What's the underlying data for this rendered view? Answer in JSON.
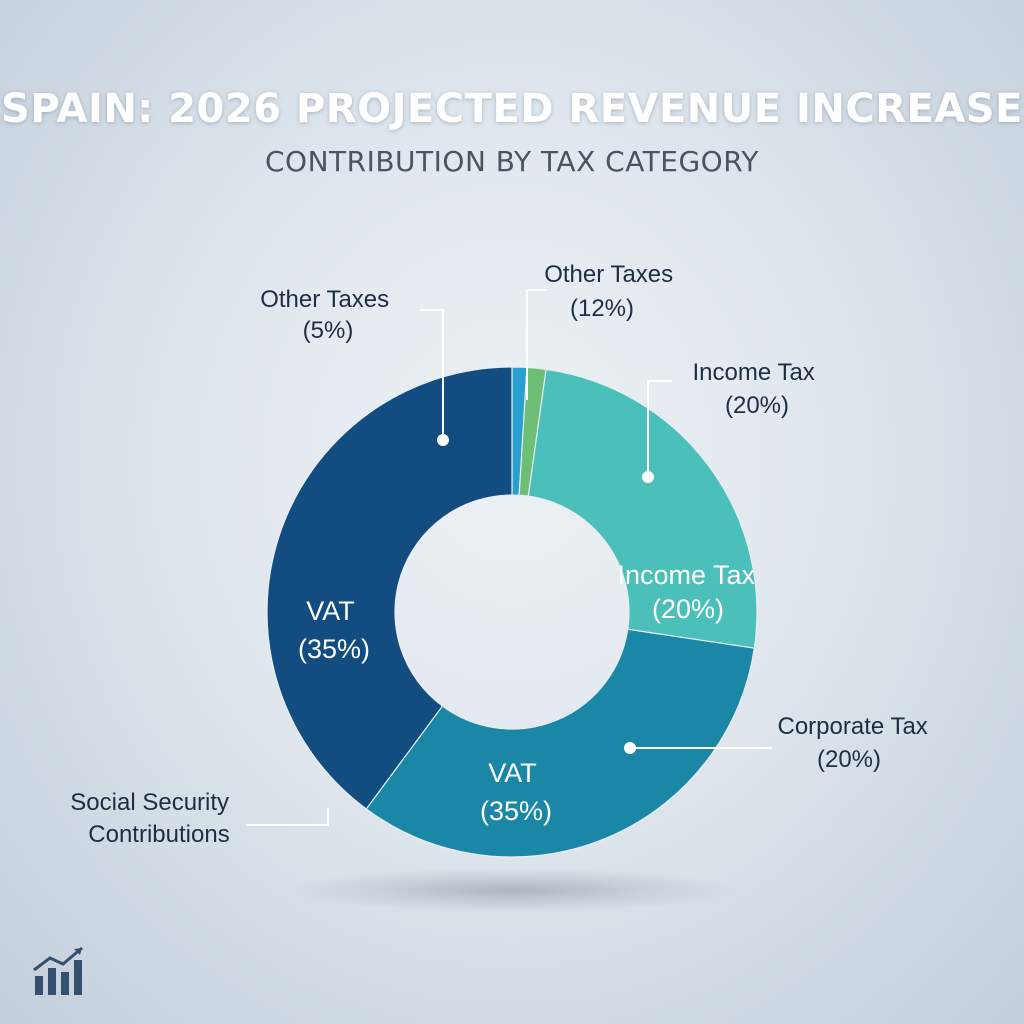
{
  "title": "SPAIN: 2026 PROJECTED REVENUE INCREASE",
  "subtitle": "CONTRIBUTION BY TAX CATEGORY",
  "logo_icon": "bar-chart-trend-icon",
  "chart_data": {
    "type": "pie",
    "variant": "donut",
    "title": "SPAIN: 2026 PROJECTED REVENUE INCREASE",
    "subtitle": "CONTRIBUTION BY TAX CATEGORY",
    "slices": [
      {
        "name": "Other Taxes",
        "value": 5,
        "percent_label": "(5%)",
        "color": "#27a0d0",
        "label_position": "top-left",
        "inside": false
      },
      {
        "name": "Other Taxes",
        "value": 12,
        "percent_label": "(12%)",
        "color": "#6cbf74",
        "label_position": "top",
        "inside": false
      },
      {
        "name": "Income Tax",
        "value": 20,
        "percent_label": "(20%)",
        "color": "#4bbfb9",
        "label_position": "top-right",
        "inside": true
      },
      {
        "name": "Corporate Tax",
        "value": 20,
        "percent_label": "(20%)",
        "color": "#1a87a6",
        "label_position": "right",
        "inside": false
      },
      {
        "name": "VAT",
        "value": 35,
        "percent_label": "(35%)",
        "color": "#124c80",
        "label_position": "left",
        "inside": true
      },
      {
        "name": "Social Security Contributions",
        "value": null,
        "percent_label": "",
        "color": "#124c80",
        "label_position": "bottom-left",
        "inside": false
      }
    ],
    "inside_labels": [
      {
        "name": "Income Tax",
        "percent": "(20%)"
      },
      {
        "name": "VAT",
        "percent": "(35%)"
      },
      {
        "name": "VAT",
        "percent": "(35%)"
      }
    ],
    "outside_labels": [
      {
        "line1": "Other Taxes",
        "line2": "(5%)"
      },
      {
        "line1": "Other Taxes",
        "line2": "(12%)"
      },
      {
        "line1": "Income Tax",
        "line2": "(20%)"
      },
      {
        "line1": "Corporate Tax",
        "line2": "(20%)"
      },
      {
        "line1": "Social Security",
        "line2": "Contributions"
      }
    ],
    "colors": {
      "vat": "#124c80",
      "corporate_tax": "#1a87a6",
      "income_tax": "#4bbfb9",
      "other_taxes_12": "#6cbf74",
      "other_taxes_5": "#27a0d0"
    }
  }
}
